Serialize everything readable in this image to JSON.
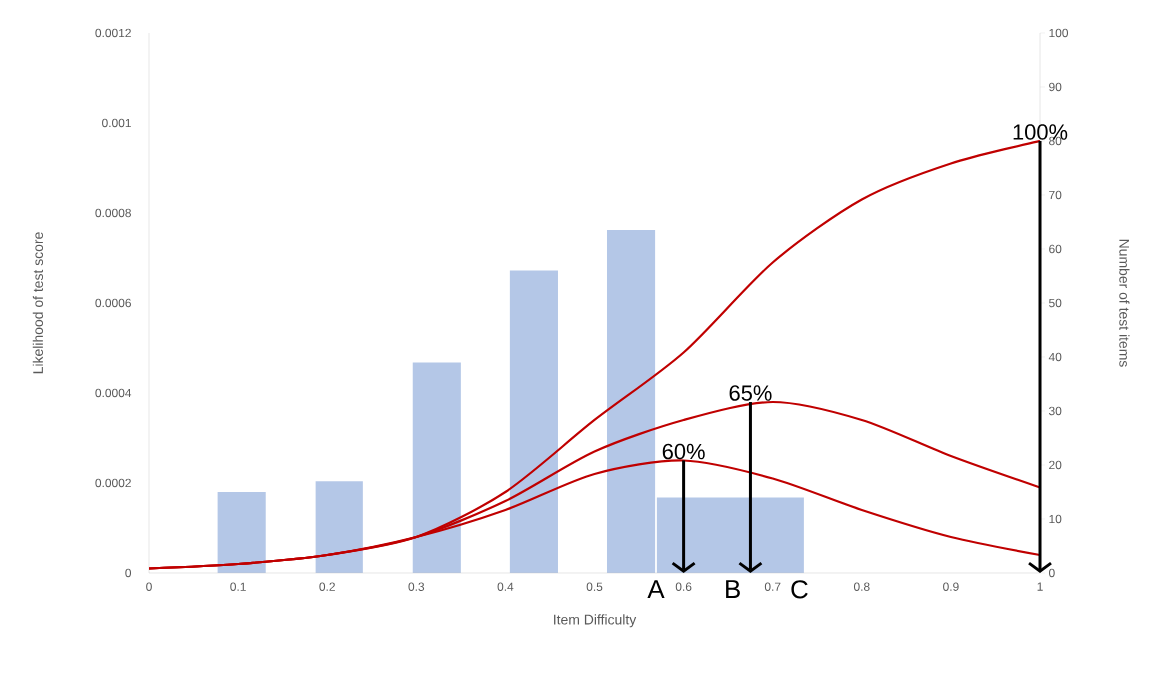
{
  "chart_data": {
    "type": "line",
    "xlabel": "Item Difficulty",
    "ylabel": "Likelihood of test score",
    "y2label": "Number of test items",
    "xlim": [
      0,
      1
    ],
    "xticks": [
      0,
      0.1,
      0.2,
      0.3,
      0.4,
      0.5,
      0.6,
      0.7,
      0.8,
      0.9,
      1
    ],
    "ylim": [
      0,
      0.0012
    ],
    "yticks": [
      0,
      0.0002,
      0.0004,
      0.0006,
      0.0008,
      0.001,
      0.0012
    ],
    "y2lim": [
      0,
      100
    ],
    "y2ticks": [
      0,
      10,
      20,
      30,
      40,
      50,
      60,
      70,
      80,
      90,
      100
    ],
    "series": [
      {
        "type": "histogram",
        "axis": "y2",
        "color": "#b4c7e7",
        "bins": [
          0.077,
          0.131,
          0.187,
          0.24,
          0.296,
          0.35,
          0.405,
          0.459,
          0.514,
          0.568,
          0.57,
          0.735
        ],
        "values": [
          15,
          null,
          17,
          null,
          39,
          null,
          56,
          null,
          63.5,
          null,
          14
        ]
      },
      {
        "color": "#c00000",
        "x": [
          0,
          0.1,
          0.2,
          0.3,
          0.4,
          0.5,
          0.6,
          0.7,
          0.8,
          0.9,
          1
        ],
        "values": [
          1e-05,
          2e-05,
          4e-05,
          8e-05,
          0.00014,
          0.00022,
          0.00025,
          0.00021,
          0.00014,
          8e-05,
          4e-05
        ]
      },
      {
        "color": "#c00000",
        "x": [
          0,
          0.1,
          0.2,
          0.3,
          0.4,
          0.5,
          0.6,
          0.7,
          0.8,
          0.9,
          1
        ],
        "values": [
          1e-05,
          2e-05,
          4e-05,
          8e-05,
          0.00016,
          0.00027,
          0.00034,
          0.00038,
          0.00034,
          0.00026,
          0.00019
        ]
      },
      {
        "color": "#c00000",
        "x": [
          0,
          0.1,
          0.2,
          0.3,
          0.4,
          0.5,
          0.6,
          0.7,
          0.8,
          0.9,
          1
        ],
        "values": [
          1e-05,
          2e-05,
          4e-05,
          8e-05,
          0.00018,
          0.00034,
          0.00049,
          0.00069,
          0.00083,
          0.00091,
          0.00096
        ]
      }
    ],
    "annotations": [
      {
        "text": "60%",
        "x": 0.6,
        "y": 0.00025
      },
      {
        "text": "65%",
        "x": 0.675,
        "y": 0.00038
      },
      {
        "text": "100%",
        "x": 1,
        "y": 0.00096
      },
      {
        "text": "A",
        "x": 0.569,
        "y": 0
      },
      {
        "text": "B",
        "x": 0.655,
        "y": 0
      },
      {
        "text": "C",
        "x": 0.73,
        "y": 0
      }
    ]
  }
}
